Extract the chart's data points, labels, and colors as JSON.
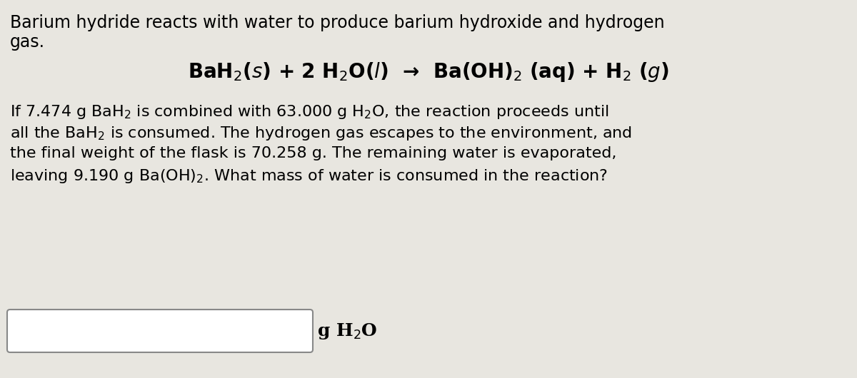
{
  "background_color": "#e8e6e0",
  "text_color": "#000000",
  "line1": "Barium hydride reacts with water to produce barium hydroxide and hydrogen",
  "line2": "gas.",
  "equation": "BaH$_2$($s$) + 2 H$_2$O($l$)  →  Ba(OH)$_2$ (aq) + H$_2$ ($g$)",
  "para_line1": "If 7.474 g BaH$_2$ is combined with 63.000 g H$_2$O, the reaction proceeds until",
  "para_line2": "all the BaH$_2$ is consumed. The hydrogen gas escapes to the environment, and",
  "para_line3": "the final weight of the flask is 70.258 g. The remaining water is evaporated,",
  "para_line4": "leaving 9.190 g Ba(OH)$_2$. What mass of water is consumed in the reaction?",
  "answer_label": "g H$_2$O",
  "figsize": [
    12.0,
    5.3
  ],
  "dpi": 100,
  "fontsize_body": 17,
  "fontsize_eq": 20
}
